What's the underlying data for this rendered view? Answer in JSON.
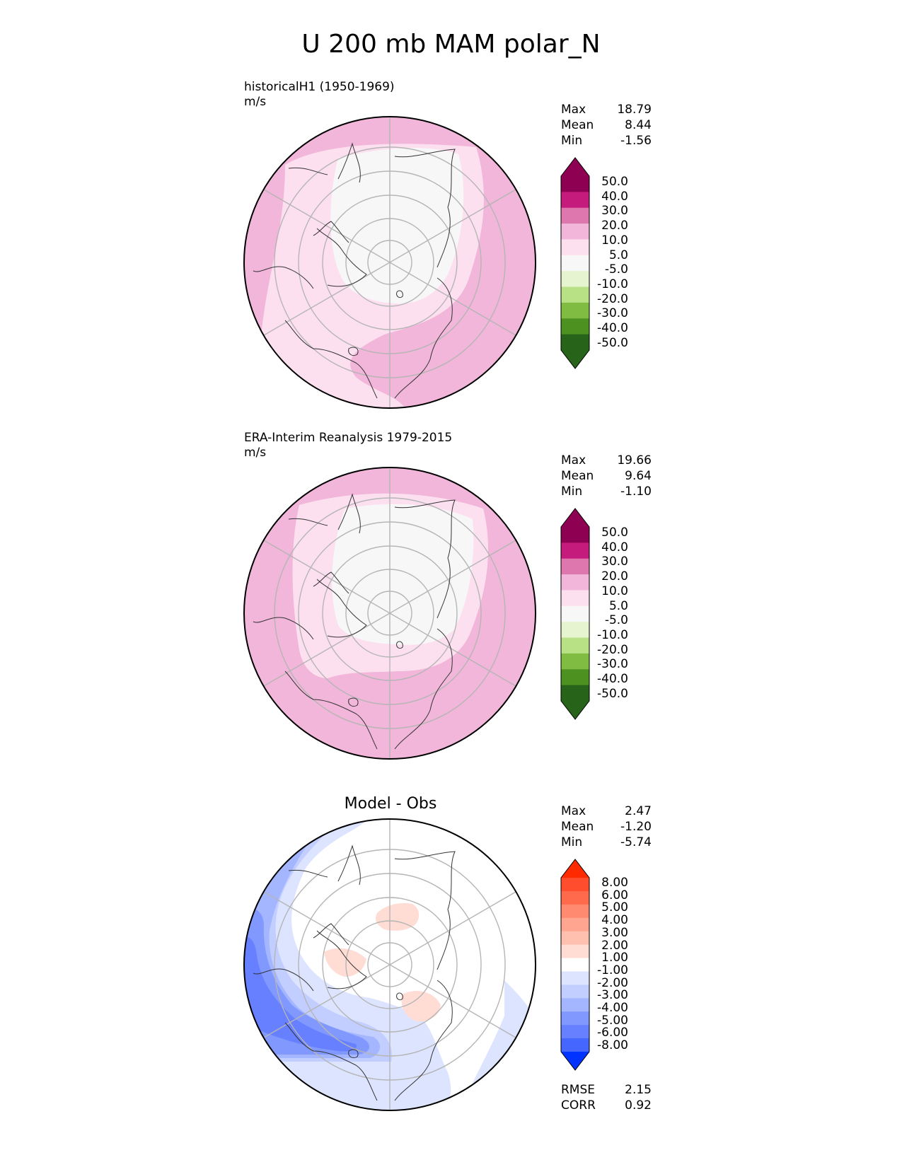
{
  "chart_data": {
    "type": "heatmap",
    "title": "U 200 mb MAM polar_N",
    "panels": [
      {
        "id": "test",
        "label": "historicalH1 (1950-1969)",
        "units": "m/s",
        "stats": [
          {
            "name": "Max",
            "value": "18.79"
          },
          {
            "name": "Mean",
            "value": "8.44"
          },
          {
            "name": "Min",
            "value": "-1.56"
          }
        ],
        "colorbar": {
          "ticks": [
            "50.0",
            "40.0",
            "30.0",
            "20.0",
            "10.0",
            "5.0",
            "-5.0",
            "-10.0",
            "-20.0",
            "-30.0",
            "-40.0",
            "-50.0"
          ],
          "colors": [
            "#8e0152",
            "#c51b7d",
            "#de77ae",
            "#f1b6da",
            "#fde0ef",
            "#f7f7f7",
            "#e6f5d0",
            "#b8e186",
            "#7fbc41",
            "#4d9221",
            "#276419"
          ],
          "extend_top": "#8e0152",
          "extend_bottom": "#276419"
        }
      },
      {
        "id": "ref",
        "label": "ERA-Interim Reanalysis 1979-2015",
        "units": "m/s",
        "stats": [
          {
            "name": "Max",
            "value": "19.66"
          },
          {
            "name": "Mean",
            "value": "9.64"
          },
          {
            "name": "Min",
            "value": "-1.10"
          }
        ],
        "colorbar": {
          "ticks": [
            "50.0",
            "40.0",
            "30.0",
            "20.0",
            "10.0",
            "5.0",
            "-5.0",
            "-10.0",
            "-20.0",
            "-30.0",
            "-40.0",
            "-50.0"
          ],
          "colors": [
            "#8e0152",
            "#c51b7d",
            "#de77ae",
            "#f1b6da",
            "#fde0ef",
            "#f7f7f7",
            "#e6f5d0",
            "#b8e186",
            "#7fbc41",
            "#4d9221",
            "#276419"
          ],
          "extend_top": "#8e0152",
          "extend_bottom": "#276419"
        }
      },
      {
        "id": "diff",
        "title": "Model - Obs",
        "stats": [
          {
            "name": "Max",
            "value": "2.47"
          },
          {
            "name": "Mean",
            "value": "-1.20"
          },
          {
            "name": "Min",
            "value": "-5.74"
          }
        ],
        "metrics": [
          {
            "name": "RMSE",
            "value": "2.15"
          },
          {
            "name": "CORR",
            "value": "0.92"
          }
        ],
        "colorbar": {
          "ticks": [
            "8.00",
            "6.00",
            "5.00",
            "4.00",
            "3.00",
            "2.00",
            "1.00",
            "-1.00",
            "-2.00",
            "-3.00",
            "-4.00",
            "-5.00",
            "-6.00",
            "-8.00"
          ],
          "colors": [
            "#ff4d2e",
            "#ff6a4d",
            "#ff8a70",
            "#ffa590",
            "#ffc0b0",
            "#ffdcd4",
            "#ffffff",
            "#dde4ff",
            "#c2ceff",
            "#a3b6ff",
            "#8199ff",
            "#6680ff",
            "#4566ff"
          ],
          "extend_top": "#ff2a00",
          "extend_bottom": "#0033ff"
        }
      }
    ]
  }
}
